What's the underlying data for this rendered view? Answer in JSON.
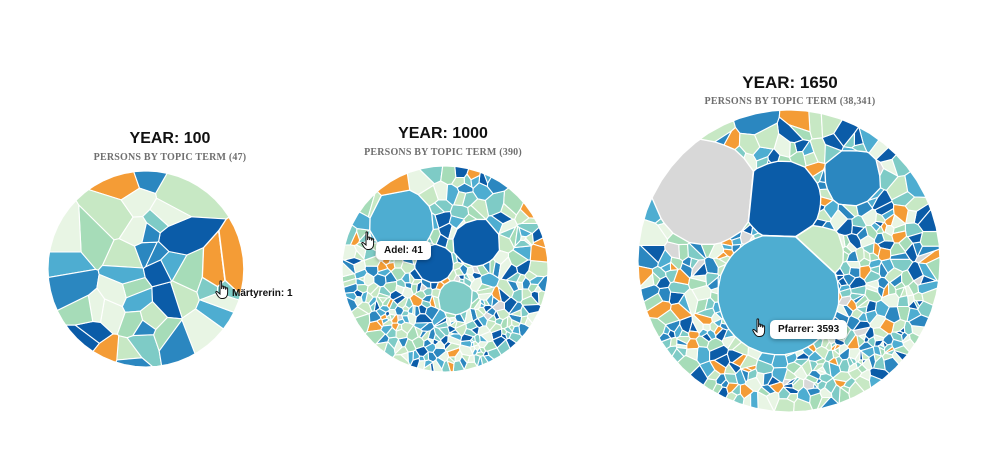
{
  "colors": {
    "palette": [
      "#0b5ca8",
      "#2b87c0",
      "#4eadd1",
      "#7ecbc6",
      "#a6dcb8",
      "#c7e8c4",
      "#e8f5e4",
      "#f49c36",
      "#d8d8d8"
    ],
    "cell_stroke": "#ffffff"
  },
  "chart_data": [
    {
      "type": "voronoi-treemap",
      "year_label": "YEAR: 100",
      "subtitle": "PERSONS BY TOPIC TERM (47)",
      "total": 47,
      "cell_count": 47,
      "highlight": {
        "term": "Märtyrerin",
        "value": 1,
        "label": "Märtyrerin: 1"
      }
    },
    {
      "type": "voronoi-treemap",
      "year_label": "YEAR: 1000",
      "subtitle": "PERSONS BY TOPIC TERM (390)",
      "total": 390,
      "cell_count": 390,
      "highlight": {
        "term": "Adel",
        "value": 41,
        "label": "Adel: 41"
      }
    },
    {
      "type": "voronoi-treemap",
      "year_label": "YEAR: 1650",
      "subtitle": "PERSONS BY TOPIC TERM (38,341)",
      "total": 38341,
      "cell_count": 500,
      "highlight": {
        "term": "Pfarrer",
        "value": 3593,
        "label": "Pfarrer: 3593"
      }
    }
  ]
}
